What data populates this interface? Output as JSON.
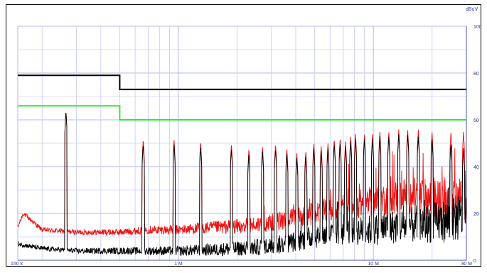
{
  "chart_data": {
    "type": "line",
    "title": "",
    "xlabel": "",
    "ylabel": "dBuV",
    "x_scale": "log",
    "xlim_hz": [
      150000,
      30000000
    ],
    "ylim": [
      0,
      100
    ],
    "x_ticks": [
      {
        "value": 150000,
        "label": "150 k"
      },
      {
        "value": 1000000,
        "label": "1 M"
      },
      {
        "value": 10000000,
        "label": "10 M"
      },
      {
        "value": 30000000,
        "label": "30 M"
      }
    ],
    "y_ticks": [
      0,
      20,
      40,
      60,
      80,
      100
    ],
    "y_unit_label": "dBuV",
    "grid": true,
    "legend": "none",
    "limit_lines": [
      {
        "color": "#000000",
        "segments": [
          {
            "x_start_hz": 150000,
            "x_end_hz": 500000,
            "y": 79
          },
          {
            "x_start_hz": 500000,
            "x_end_hz": 30000000,
            "y": 73
          }
        ]
      },
      {
        "color": "#22ee33",
        "segments": [
          {
            "x_start_hz": 150000,
            "x_end_hz": 500000,
            "y": 66
          },
          {
            "x_start_hz": 500000,
            "x_end_hz": 30000000,
            "y": 60
          }
        ]
      }
    ],
    "series": [
      {
        "color": "#ee1111",
        "baseline": [
          [
            150000,
            14
          ],
          [
            160000,
            20
          ],
          [
            200000,
            13
          ],
          [
            300000,
            12
          ],
          [
            500000,
            12
          ],
          [
            700000,
            13
          ],
          [
            1000000,
            13
          ],
          [
            1500000,
            14
          ],
          [
            2000000,
            14.5
          ],
          [
            3000000,
            16
          ],
          [
            5000000,
            20
          ],
          [
            7000000,
            23
          ],
          [
            10000000,
            25
          ],
          [
            15000000,
            28
          ],
          [
            20000000,
            26
          ],
          [
            30000000,
            25
          ]
        ],
        "peaks": [
          [
            265000,
            64
          ],
          [
            660000,
            52
          ],
          [
            950000,
            52
          ],
          [
            1300000,
            51
          ],
          [
            1870000,
            50
          ],
          [
            2300000,
            48
          ],
          [
            2700000,
            49
          ],
          [
            3150000,
            50
          ],
          [
            3600000,
            48
          ],
          [
            4050000,
            46
          ],
          [
            4500000,
            47
          ],
          [
            4950000,
            50
          ],
          [
            5400000,
            49
          ],
          [
            5850000,
            50
          ],
          [
            6300000,
            52
          ],
          [
            6750000,
            52
          ],
          [
            7200000,
            51
          ],
          [
            7650000,
            53
          ],
          [
            8100000,
            54
          ],
          [
            9000000,
            54
          ],
          [
            9900000,
            54
          ],
          [
            10800000,
            55
          ],
          [
            12000000,
            55
          ],
          [
            13500000,
            56
          ],
          [
            15000000,
            56
          ],
          [
            17000000,
            56
          ],
          [
            20000000,
            55
          ],
          [
            25000000,
            55
          ],
          [
            29000000,
            55
          ]
        ]
      },
      {
        "color": "#000000",
        "baseline": [
          [
            150000,
            7
          ],
          [
            200000,
            5
          ],
          [
            300000,
            4
          ],
          [
            500000,
            4
          ],
          [
            1000000,
            4
          ],
          [
            1500000,
            4.5
          ],
          [
            2000000,
            5
          ],
          [
            3000000,
            6
          ],
          [
            4000000,
            8
          ],
          [
            5000000,
            10
          ],
          [
            7000000,
            12
          ],
          [
            10000000,
            13
          ],
          [
            15000000,
            15
          ],
          [
            20000000,
            16
          ],
          [
            30000000,
            18
          ]
        ],
        "peaks": [
          [
            265000,
            64
          ],
          [
            660000,
            50
          ],
          [
            950000,
            50
          ],
          [
            1300000,
            49
          ],
          [
            1870000,
            48
          ],
          [
            2300000,
            46
          ],
          [
            2700000,
            47
          ],
          [
            3150000,
            48
          ],
          [
            3600000,
            46
          ],
          [
            4050000,
            44
          ],
          [
            4500000,
            45
          ],
          [
            4950000,
            48
          ],
          [
            5400000,
            47
          ],
          [
            5850000,
            48
          ],
          [
            6300000,
            50
          ],
          [
            6750000,
            50
          ],
          [
            7200000,
            49
          ],
          [
            7650000,
            51
          ],
          [
            8100000,
            52
          ],
          [
            9000000,
            52
          ],
          [
            9900000,
            52
          ],
          [
            10800000,
            53
          ],
          [
            12000000,
            53
          ],
          [
            13500000,
            54
          ],
          [
            15000000,
            54
          ],
          [
            17000000,
            53
          ],
          [
            20000000,
            52
          ],
          [
            25000000,
            50
          ],
          [
            29000000,
            48
          ]
        ]
      }
    ]
  }
}
